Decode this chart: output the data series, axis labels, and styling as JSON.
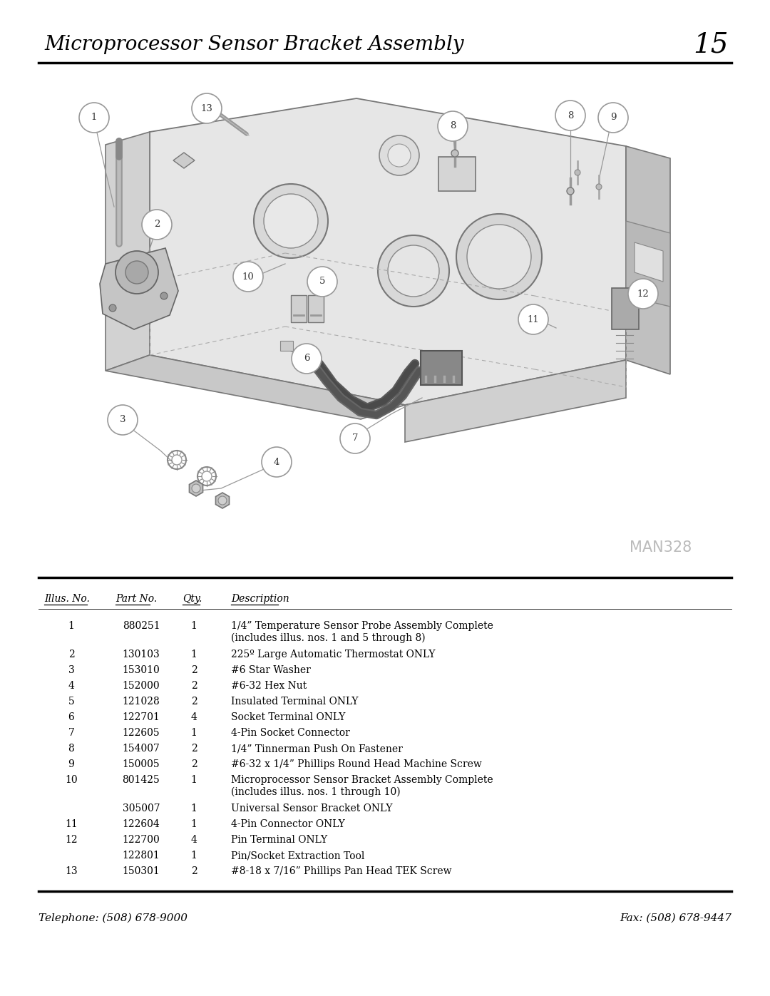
{
  "title": "Microprocessor Sensor Bracket Assembly",
  "page_number": "15",
  "bg_color": "#ffffff",
  "text_color": "#000000",
  "man_code": "MAN328",
  "table_headers": [
    "Illus. No.",
    "Part No.",
    "Qty.",
    "Description"
  ],
  "table_rows": [
    [
      "1",
      "880251",
      "1",
      "1/4” Temperature Sensor Probe Assembly Complete\n(includes illus. nos. 1 and 5 through 8)"
    ],
    [
      "2",
      "130103",
      "1",
      "225º Large Automatic Thermostat ONLY"
    ],
    [
      "3",
      "153010",
      "2",
      "#6 Star Washer"
    ],
    [
      "4",
      "152000",
      "2",
      "#6-32 Hex Nut"
    ],
    [
      "5",
      "121028",
      "2",
      "Insulated Terminal ONLY"
    ],
    [
      "6",
      "122701",
      "4",
      "Socket Terminal ONLY"
    ],
    [
      "7",
      "122605",
      "1",
      "4-Pin Socket Connector"
    ],
    [
      "8",
      "154007",
      "2",
      "1/4” Tinnerman Push On Fastener"
    ],
    [
      "9",
      "150005",
      "2",
      "#6-32 x 1/4” Phillips Round Head Machine Screw"
    ],
    [
      "10",
      "801425",
      "1",
      "Microprocessor Sensor Bracket Assembly Complete\n(includes illus. nos. 1 through 10)"
    ],
    [
      "",
      "305007",
      "1",
      "Universal Sensor Bracket ONLY"
    ],
    [
      "11",
      "122604",
      "1",
      "4-Pin Connector ONLY"
    ],
    [
      "12",
      "122700",
      "4",
      "Pin Terminal ONLY"
    ],
    [
      "",
      "122801",
      "1",
      "Pin/Socket Extraction Tool"
    ],
    [
      "13",
      "150301",
      "2",
      "#8-18 x 7/16” Phillips Pan Head TEK Screw"
    ]
  ],
  "footer_left": "Telephone: (508) 678-9000",
  "footer_right": "Fax: (508) 678-9447"
}
